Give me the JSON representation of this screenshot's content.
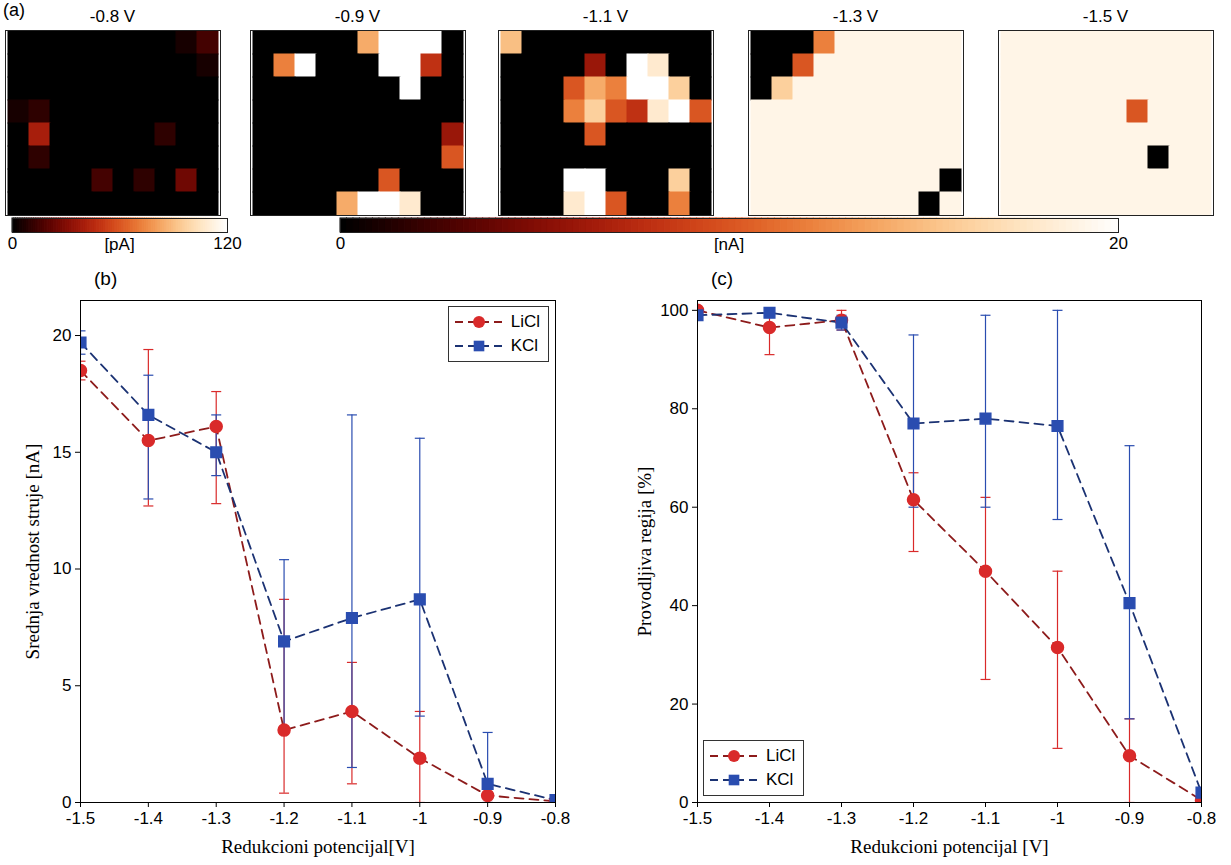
{
  "chart_data": [
    {
      "type": "heatmap",
      "panel": "(a)",
      "colorbars": [
        {
          "range": [
            0,
            120
          ],
          "ticks": [
            0,
            120
          ],
          "label": "[pA]",
          "maps": [
            {
              "title": "-0.8 V",
              "cells": [
                [
                  0,
                  0,
                  0,
                  0,
                  0,
                  0,
                  0,
                  0,
                  5,
                  15
                ],
                [
                  0,
                  0,
                  0,
                  0,
                  0,
                  0,
                  0,
                  0,
                  0,
                  5
                ],
                [
                  0,
                  0,
                  0,
                  0,
                  0,
                  0,
                  0,
                  0,
                  0,
                  0
                ],
                [
                  5,
                  10,
                  0,
                  0,
                  0,
                  0,
                  0,
                  0,
                  0,
                  0
                ],
                [
                  0,
                  40,
                  0,
                  0,
                  0,
                  0,
                  0,
                  10,
                  0,
                  0
                ],
                [
                  0,
                  10,
                  0,
                  0,
                  0,
                  0,
                  0,
                  0,
                  0,
                  0
                ],
                [
                  0,
                  0,
                  0,
                  0,
                  15,
                  0,
                  10,
                  0,
                  25,
                  0
                ],
                [
                  0,
                  0,
                  0,
                  0,
                  0,
                  0,
                  0,
                  0,
                  0,
                  0
                ]
              ]
            }
          ]
        },
        {
          "range": [
            0,
            20
          ],
          "ticks": [
            0,
            20
          ],
          "label": "[nA]",
          "maps": [
            {
              "title": "-0.9 V",
              "cells": [
                [
                  0,
                  0,
                  0,
                  0,
                  0,
                  14,
                  20,
                  20,
                  20,
                  0
                ],
                [
                  0,
                  12,
                  20,
                  0,
                  0,
                  0,
                  20,
                  20,
                  8,
                  0
                ],
                [
                  0,
                  0,
                  0,
                  0,
                  0,
                  0,
                  0,
                  20,
                  0,
                  0
                ],
                [
                  0,
                  0,
                  0,
                  0,
                  0,
                  0,
                  0,
                  0,
                  0,
                  0
                ],
                [
                  0,
                  0,
                  0,
                  0,
                  0,
                  0,
                  0,
                  0,
                  0,
                  6
                ],
                [
                  0,
                  0,
                  0,
                  0,
                  0,
                  0,
                  0,
                  0,
                  0,
                  10
                ],
                [
                  0,
                  0,
                  0,
                  0,
                  0,
                  0,
                  10,
                  0,
                  0,
                  0
                ],
                [
                  0,
                  0,
                  0,
                  0,
                  14,
                  20,
                  20,
                  18,
                  0,
                  0
                ]
              ]
            },
            {
              "title": "-1.1 V",
              "cells": [
                [
                  15,
                  0,
                  0,
                  0,
                  0,
                  0,
                  0,
                  0,
                  0,
                  0
                ],
                [
                  0,
                  0,
                  0,
                  0,
                  6,
                  0,
                  20,
                  18,
                  0,
                  0
                ],
                [
                  0,
                  0,
                  0,
                  10,
                  14,
                  12,
                  20,
                  20,
                  16,
                  0
                ],
                [
                  0,
                  0,
                  0,
                  12,
                  16,
                  10,
                  8,
                  18,
                  20,
                  10
                ],
                [
                  0,
                  0,
                  0,
                  0,
                  10,
                  0,
                  0,
                  0,
                  0,
                  0
                ],
                [
                  0,
                  0,
                  0,
                  0,
                  0,
                  0,
                  0,
                  0,
                  0,
                  0
                ],
                [
                  0,
                  0,
                  0,
                  20,
                  20,
                  0,
                  0,
                  0,
                  16,
                  0
                ],
                [
                  0,
                  0,
                  0,
                  18,
                  20,
                  10,
                  0,
                  0,
                  12,
                  0
                ]
              ]
            },
            {
              "title": "-1.3 V",
              "cells": [
                [
                  0,
                  0,
                  0,
                  12,
                  19,
                  19,
                  19,
                  19,
                  19,
                  19
                ],
                [
                  0,
                  0,
                  10,
                  19,
                  19,
                  19,
                  19,
                  19,
                  19,
                  19
                ],
                [
                  0,
                  16,
                  19,
                  19,
                  19,
                  19,
                  19,
                  19,
                  19,
                  19
                ],
                [
                  19,
                  19,
                  19,
                  19,
                  19,
                  19,
                  19,
                  19,
                  19,
                  19
                ],
                [
                  19,
                  19,
                  19,
                  19,
                  19,
                  19,
                  19,
                  19,
                  19,
                  19
                ],
                [
                  19,
                  19,
                  19,
                  19,
                  19,
                  19,
                  19,
                  19,
                  19,
                  19
                ],
                [
                  19,
                  19,
                  19,
                  19,
                  19,
                  19,
                  19,
                  19,
                  19,
                  0
                ],
                [
                  19,
                  19,
                  19,
                  19,
                  19,
                  19,
                  19,
                  19,
                  0,
                  19
                ]
              ]
            },
            {
              "title": "-1.5 V",
              "cells": [
                [
                  19,
                  19,
                  19,
                  19,
                  19,
                  19,
                  19,
                  19,
                  19,
                  19
                ],
                [
                  19,
                  19,
                  19,
                  19,
                  19,
                  19,
                  19,
                  19,
                  19,
                  19
                ],
                [
                  19,
                  19,
                  19,
                  19,
                  19,
                  19,
                  19,
                  19,
                  19,
                  19
                ],
                [
                  19,
                  19,
                  19,
                  19,
                  19,
                  19,
                  10,
                  19,
                  19,
                  19
                ],
                [
                  19,
                  19,
                  19,
                  19,
                  19,
                  19,
                  19,
                  19,
                  19,
                  19
                ],
                [
                  19,
                  19,
                  19,
                  19,
                  19,
                  19,
                  19,
                  0,
                  19,
                  19
                ],
                [
                  19,
                  19,
                  19,
                  19,
                  19,
                  19,
                  19,
                  19,
                  19,
                  19
                ],
                [
                  19,
                  19,
                  19,
                  19,
                  19,
                  19,
                  19,
                  19,
                  19,
                  19
                ]
              ]
            }
          ]
        }
      ]
    },
    {
      "type": "line",
      "panel": "(b)",
      "x_label": "Redukcioni potencijal[V]",
      "y_label": "Srednja vrednost struje [nA]",
      "x": [
        -1.5,
        -1.4,
        -1.3,
        -1.2,
        -1.1,
        -1.0,
        -0.9,
        -0.8
      ],
      "xlim": [
        -1.5,
        -0.8
      ],
      "xticks": [
        -1.5,
        -1.4,
        -1.3,
        -1.2,
        -1.1,
        -1,
        -0.9,
        -0.8
      ],
      "ylim": [
        0,
        21.5
      ],
      "yticks": [
        0,
        5,
        10,
        15,
        20
      ],
      "legend": "upper right",
      "series": [
        {
          "name": "LiCl",
          "color": "#d92a2a",
          "marker": "circle",
          "line_style": "dashed",
          "values": [
            18.5,
            15.5,
            16.1,
            3.1,
            3.9,
            1.9,
            0.3,
            0.05
          ],
          "error_lower": [
            18.1,
            12.7,
            12.8,
            0.4,
            0.8,
            0,
            0,
            0
          ],
          "error_upper": [
            18.9,
            19.4,
            17.6,
            8.7,
            6.0,
            3.9,
            0.6,
            0.1
          ]
        },
        {
          "name": "KCl",
          "color": "#2a4db0",
          "marker": "square",
          "line_style": "dashed",
          "values": [
            19.7,
            16.6,
            15.0,
            6.9,
            7.9,
            8.7,
            0.8,
            0.1
          ],
          "error_lower": [
            19.2,
            13.0,
            14.0,
            3.2,
            1.5,
            3.7,
            0,
            0
          ],
          "error_upper": [
            20.2,
            18.3,
            16.6,
            10.4,
            16.6,
            15.6,
            3.0,
            0.2
          ]
        }
      ]
    },
    {
      "type": "line",
      "panel": "(c)",
      "x_label": "Redukcioni potencijal [V]",
      "y_label": "Provodljiva regija [%]",
      "x": [
        -1.5,
        -1.4,
        -1.3,
        -1.2,
        -1.1,
        -1.0,
        -0.9,
        -0.8
      ],
      "xlim": [
        -1.5,
        -0.8
      ],
      "xticks": [
        -1.5,
        -1.4,
        -1.3,
        -1.2,
        -1.1,
        -1,
        -0.9,
        -0.8
      ],
      "ylim": [
        0,
        102
      ],
      "yticks": [
        0,
        20,
        40,
        60,
        80,
        100
      ],
      "legend": "lower left",
      "series": [
        {
          "name": "LiCl",
          "color": "#d92a2a",
          "marker": "circle",
          "line_style": "dashed",
          "values": [
            100,
            96.5,
            98,
            61.5,
            47,
            31.5,
            9.5,
            0.5
          ],
          "error_lower": [
            100,
            91,
            96,
            51,
            25,
            11,
            0,
            0
          ],
          "error_upper": [
            100,
            100,
            100,
            67,
            62,
            47,
            17,
            1
          ]
        },
        {
          "name": "KCl",
          "color": "#2a4db0",
          "marker": "square",
          "line_style": "dashed",
          "values": [
            99,
            99.5,
            97.5,
            77,
            78,
            76.5,
            40.5,
            2
          ],
          "error_lower": [
            98,
            99,
            96,
            60,
            60,
            57.5,
            17,
            0
          ],
          "error_upper": [
            100,
            100,
            99,
            95,
            99,
            100,
            72.5,
            3
          ]
        }
      ]
    }
  ]
}
